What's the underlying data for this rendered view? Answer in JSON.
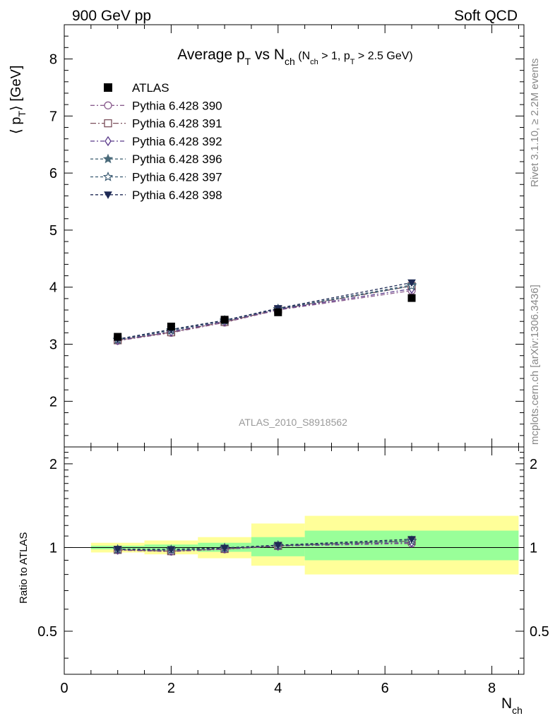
{
  "header": {
    "left": "900 GeV pp",
    "right": "Soft QCD"
  },
  "side_labels": {
    "rivet": "Rivet 3.1.10, ≥ 2.2M events",
    "mcplots": "mcplots.cern.ch [arXiv:1306.3436]"
  },
  "chart_data": {
    "type": "scatter",
    "title_parts": [
      "Average p",
      "T",
      " vs N",
      "ch",
      " (N",
      "ch",
      " > 1, p",
      "T",
      " > 2.5 GeV)"
    ],
    "analysis_tag": "ATLAS_2010_S8918562",
    "ylabel_main": "⟨ p",
    "ylabel_main_sub": "T",
    "ylabel_main_unit": "⟩ [GeV]",
    "ylabel_ratio": "Ratio to ATLAS",
    "xlabel": "N",
    "xlabel_sub": "ch",
    "xlim": [
      0,
      8.6
    ],
    "ylim_main": [
      1.2,
      8.6
    ],
    "ylim_ratio": [
      0.35,
      2.3
    ],
    "x_ticks": [
      "0",
      "2",
      "4",
      "6",
      "8"
    ],
    "y_ticks_main": [
      "2",
      "3",
      "4",
      "5",
      "6",
      "7",
      "8"
    ],
    "y_ticks_ratio": [
      "0.5",
      "1",
      "2"
    ],
    "legend_position": "top-left",
    "data": {
      "name": "ATLAS",
      "x": [
        1,
        2,
        3,
        4,
        6.5
      ],
      "y": [
        3.13,
        3.31,
        3.43,
        3.56,
        3.81
      ],
      "bins": [
        [
          0.5,
          1.5
        ],
        [
          1.5,
          2.5
        ],
        [
          2.5,
          3.5
        ],
        [
          3.5,
          4.5
        ],
        [
          4.5,
          8.5
        ]
      ],
      "ratio_band_stat": [
        [
          0.985,
          1.015
        ],
        [
          0.975,
          1.025
        ],
        [
          0.965,
          1.04
        ],
        [
          0.93,
          1.09
        ],
        [
          0.9,
          1.15
        ]
      ],
      "ratio_band_total": [
        [
          0.96,
          1.04
        ],
        [
          0.945,
          1.06
        ],
        [
          0.915,
          1.09
        ],
        [
          0.86,
          1.22
        ],
        [
          0.8,
          1.3
        ]
      ]
    },
    "series": [
      {
        "name": "Pythia 6.428 390",
        "color": "#8b5e8f",
        "marker": "circle-open",
        "dash": "6,3,2,3",
        "y": [
          3.06,
          3.2,
          3.38,
          3.6,
          3.94
        ],
        "ratio": [
          0.978,
          0.967,
          0.985,
          1.011,
          1.034
        ]
      },
      {
        "name": "Pythia 6.428 391",
        "color": "#7a4f5a",
        "marker": "square-open",
        "dash": "8,3,2,3",
        "y": [
          3.07,
          3.21,
          3.39,
          3.61,
          4.02
        ],
        "ratio": [
          0.981,
          0.97,
          0.988,
          1.014,
          1.055
        ]
      },
      {
        "name": "Pythia 6.428 392",
        "color": "#5a3a8a",
        "marker": "diamond-open",
        "dash": "6,3,2,3",
        "y": [
          3.07,
          3.22,
          3.4,
          3.61,
          3.97
        ],
        "ratio": [
          0.981,
          0.973,
          0.991,
          1.014,
          1.042
        ]
      },
      {
        "name": "Pythia 6.428 396",
        "color": "#4a6a7a",
        "marker": "star-filled",
        "dash": "4,3",
        "y": [
          3.08,
          3.24,
          3.41,
          3.62,
          4.04
        ],
        "ratio": [
          0.984,
          0.979,
          0.994,
          1.017,
          1.06
        ]
      },
      {
        "name": "Pythia 6.428 397",
        "color": "#3a5a72",
        "marker": "star-open",
        "dash": "4,3",
        "y": [
          3.08,
          3.25,
          3.42,
          3.62,
          4.02
        ],
        "ratio": [
          0.984,
          0.982,
          0.997,
          1.017,
          1.055
        ]
      },
      {
        "name": "Pythia 6.428 398",
        "color": "#1f2a55",
        "marker": "triangle-down-filled",
        "dash": "4,3",
        "y": [
          3.09,
          3.26,
          3.42,
          3.63,
          4.08
        ],
        "ratio": [
          0.987,
          0.985,
          0.997,
          1.02,
          1.071
        ]
      }
    ]
  }
}
